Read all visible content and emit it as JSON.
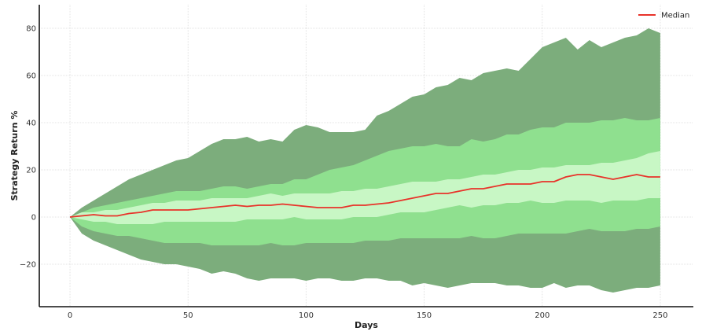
{
  "chart_data": {
    "type": "area",
    "xlabel": "Days",
    "ylabel": "Strategy Return %",
    "xlim": [
      -13,
      264
    ],
    "ylim": [
      -38,
      90
    ],
    "x_ticks": [
      0,
      50,
      100,
      150,
      200,
      250
    ],
    "y_ticks": [
      -20,
      0,
      20,
      40,
      60,
      80
    ],
    "grid": true,
    "legend": {
      "position": "top-right",
      "entries": [
        "Median"
      ]
    },
    "colors": {
      "outer_band": "#7cad7c",
      "middle_band": "#8fe08f",
      "inner_band": "#c8f7c5",
      "median_line": "#e8332a"
    },
    "x": [
      0,
      5,
      10,
      15,
      20,
      25,
      30,
      35,
      40,
      45,
      50,
      55,
      60,
      65,
      70,
      75,
      80,
      85,
      90,
      95,
      100,
      105,
      110,
      115,
      120,
      125,
      130,
      135,
      140,
      145,
      150,
      155,
      160,
      165,
      170,
      175,
      180,
      185,
      190,
      195,
      200,
      205,
      210,
      215,
      220,
      225,
      230,
      235,
      240,
      245,
      250
    ],
    "series": [
      {
        "band": "outer",
        "lower": [
          0,
          -7,
          -10,
          -12,
          -14,
          -16,
          -18,
          -19,
          -20,
          -20,
          -21,
          -22,
          -24,
          -23,
          -24,
          -26,
          -27,
          -26,
          -26,
          -26,
          -27,
          -26,
          -26,
          -27,
          -27,
          -26,
          -26,
          -27,
          -27,
          -29,
          -28,
          -29,
          -30,
          -29,
          -28,
          -28,
          -28,
          -29,
          -29,
          -30,
          -30,
          -28,
          -30,
          -29,
          -29,
          -31,
          -32,
          -31,
          -30,
          -30,
          -29
        ],
        "upper": [
          0,
          4,
          7,
          10,
          13,
          16,
          18,
          20,
          22,
          24,
          25,
          28,
          31,
          33,
          33,
          34,
          32,
          33,
          32,
          37,
          39,
          38,
          36,
          36,
          36,
          37,
          43,
          45,
          48,
          51,
          52,
          55,
          56,
          59,
          58,
          61,
          62,
          63,
          62,
          67,
          72,
          74,
          76,
          71,
          75,
          72,
          74,
          76,
          77,
          80,
          78
        ]
      },
      {
        "band": "middle",
        "lower": [
          0,
          -4,
          -6,
          -7,
          -8,
          -8,
          -9,
          -10,
          -11,
          -11,
          -11,
          -11,
          -12,
          -12,
          -12,
          -12,
          -12,
          -11,
          -12,
          -12,
          -11,
          -11,
          -11,
          -11,
          -11,
          -10,
          -10,
          -10,
          -9,
          -9,
          -9,
          -9,
          -9,
          -9,
          -8,
          -9,
          -9,
          -8,
          -7,
          -7,
          -7,
          -7,
          -7,
          -6,
          -5,
          -6,
          -6,
          -6,
          -5,
          -5,
          -4
        ],
        "upper": [
          0,
          2,
          4,
          5,
          6,
          7,
          8,
          9,
          10,
          11,
          11,
          11,
          12,
          13,
          13,
          12,
          13,
          14,
          14,
          16,
          16,
          18,
          20,
          21,
          22,
          24,
          26,
          28,
          29,
          30,
          30,
          31,
          30,
          30,
          33,
          32,
          33,
          35,
          35,
          37,
          38,
          38,
          40,
          40,
          40,
          41,
          41,
          42,
          41,
          41,
          42
        ]
      },
      {
        "band": "inner",
        "lower": [
          0,
          -1,
          -2,
          -2,
          -3,
          -3,
          -3,
          -3,
          -2,
          -2,
          -2,
          -2,
          -2,
          -2,
          -2,
          -1,
          -1,
          -1,
          -1,
          0,
          -1,
          -1,
          -1,
          -1,
          0,
          0,
          0,
          1,
          2,
          2,
          2,
          3,
          4,
          5,
          4,
          5,
          5,
          6,
          6,
          7,
          6,
          6,
          7,
          7,
          7,
          6,
          7,
          7,
          7,
          8,
          8
        ],
        "upper": [
          0,
          2,
          2,
          3,
          3,
          4,
          5,
          6,
          6,
          7,
          7,
          7,
          8,
          8,
          8,
          8,
          9,
          10,
          9,
          10,
          10,
          10,
          10,
          11,
          11,
          12,
          12,
          13,
          14,
          15,
          15,
          15,
          16,
          16,
          17,
          18,
          18,
          19,
          20,
          20,
          21,
          21,
          22,
          22,
          22,
          23,
          23,
          24,
          25,
          27,
          28
        ]
      },
      {
        "name": "Median",
        "values": [
          0,
          0.5,
          1,
          0.5,
          0.5,
          1.5,
          2,
          3,
          3,
          3,
          3,
          3.5,
          4,
          4.5,
          5,
          4.5,
          5,
          5,
          5.5,
          5,
          4.5,
          4,
          4,
          4,
          5,
          5,
          5.5,
          6,
          7,
          8,
          9,
          10,
          10,
          11,
          12,
          12,
          13,
          14,
          14,
          14,
          15,
          15,
          17,
          18,
          18,
          17,
          16,
          17,
          18,
          17,
          17
        ]
      }
    ]
  }
}
